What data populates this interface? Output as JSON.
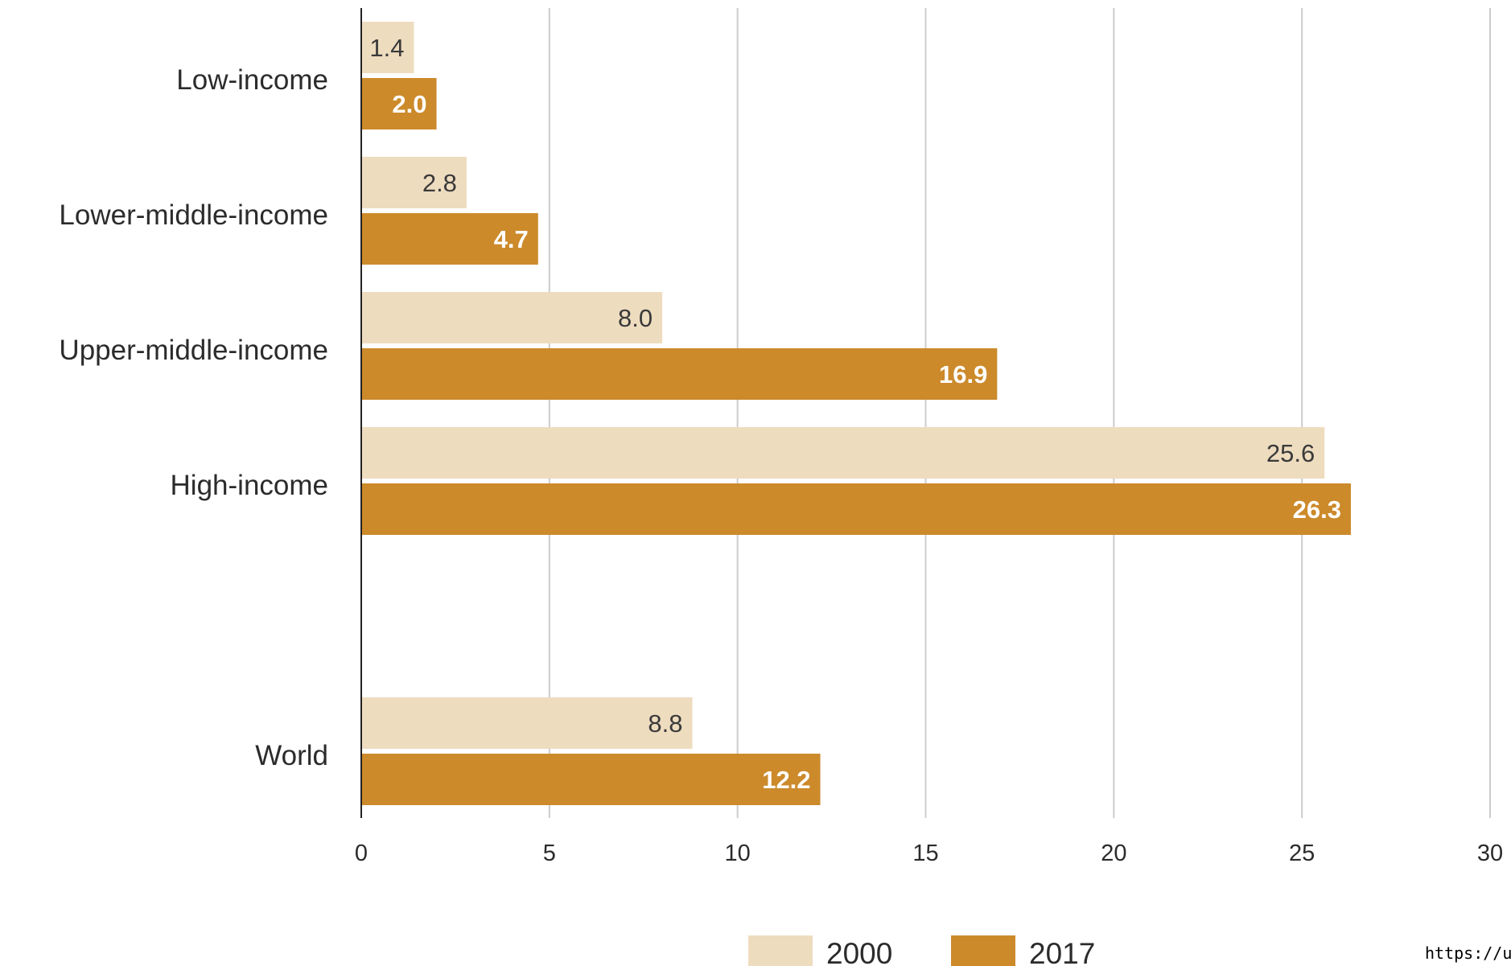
{
  "chart_data": {
    "type": "bar",
    "orientation": "horizontal",
    "categories": [
      "Low-income",
      "Lower-middle-income",
      "Upper-middle-income",
      "High-income",
      "World"
    ],
    "series": [
      {
        "name": "2000",
        "color": "#eedcbf",
        "values": [
          1.4,
          2.8,
          8.0,
          25.6,
          8.8
        ],
        "labels": [
          "1.4",
          "2.8",
          "8.0",
          "25.6",
          "8.8"
        ]
      },
      {
        "name": "2017",
        "color": "#cc8a2b",
        "values": [
          2.0,
          4.7,
          16.9,
          26.3,
          12.2
        ],
        "labels": [
          "2.0",
          "4.7",
          "16.9",
          "26.3",
          "12.2"
        ]
      }
    ],
    "xlim": [
      0,
      30
    ],
    "xticks": [
      "0",
      "5",
      "10",
      "15",
      "20",
      "25",
      "30"
    ],
    "grid": true,
    "legend_position": "bottom-center",
    "title": "",
    "xlabel": "",
    "ylabel": ""
  },
  "footer": {
    "source_text": "https://uns"
  }
}
